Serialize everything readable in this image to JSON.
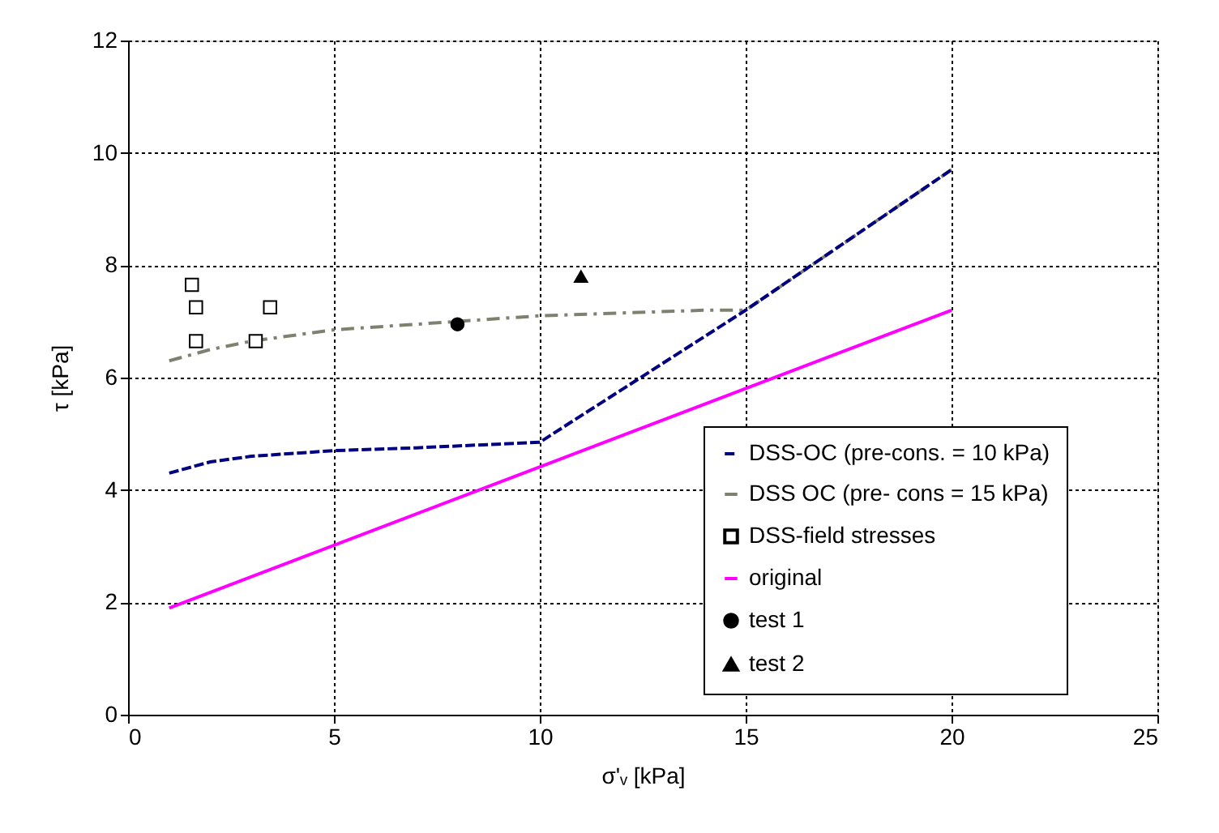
{
  "chart_data": {
    "type": "line",
    "xlabel": "σ'ᵥ  [kPa]",
    "ylabel": "τ [kPa]",
    "xlim": [
      0,
      25
    ],
    "xticks": [
      0,
      5,
      10,
      15,
      20,
      25
    ],
    "ylim": [
      0,
      12
    ],
    "yticks": [
      0,
      2,
      4,
      6,
      8,
      10,
      12
    ],
    "grid": true,
    "legend": "bottom right",
    "series": [
      {
        "name": "DSS-OC (pre-cons. = 10 kPa)",
        "line_style": "dashed",
        "marker": "none",
        "color": "#000080",
        "x": [
          1,
          2,
          3,
          5,
          7,
          10,
          15,
          20
        ],
        "values": [
          4.3,
          4.5,
          4.6,
          4.7,
          4.75,
          4.85,
          7.2,
          9.7
        ]
      },
      {
        "name": "DSS OC (pre- cons = 15 kPa)",
        "line_style": "dashdot",
        "marker": "none",
        "color": "#808070",
        "x": [
          1,
          2,
          3,
          5,
          8,
          10,
          14,
          15,
          20
        ],
        "values": [
          6.3,
          6.5,
          6.65,
          6.85,
          7.0,
          7.1,
          7.2,
          7.2,
          9.7
        ]
      },
      {
        "name": "DSS-field stresses",
        "type": "scatter",
        "marker": "square",
        "color": "#000000",
        "x": [
          1.55,
          1.65,
          1.65,
          3.1,
          3.45
        ],
        "values": [
          7.65,
          7.25,
          6.65,
          6.65,
          7.25
        ]
      },
      {
        "name": "original",
        "line_style": "solid",
        "marker": "none",
        "color": "#ff00ff",
        "x": [
          1,
          20
        ],
        "values": [
          1.9,
          7.2
        ]
      },
      {
        "name": "test 1",
        "type": "scatter",
        "marker": "circle",
        "color": "#000000",
        "x": [
          8
        ],
        "values": [
          6.95
        ]
      },
      {
        "name": "test 2",
        "type": "scatter",
        "marker": "triangle",
        "color": "#000000",
        "x": [
          11
        ],
        "values": [
          7.8
        ]
      }
    ]
  }
}
